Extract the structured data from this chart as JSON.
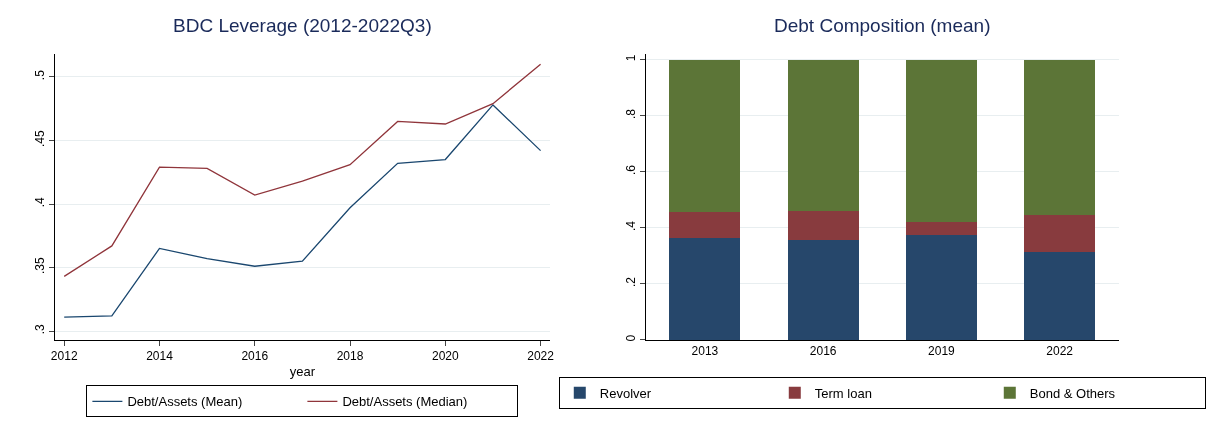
{
  "chart_data": [
    {
      "type": "line",
      "title": "BDC Leverage (2012-2022Q3)",
      "xlabel": "year",
      "x": [
        2012,
        2013,
        2014,
        2015,
        2016,
        2017,
        2018,
        2019,
        2020,
        2021,
        2022
      ],
      "series": [
        {
          "name": "Debt/Assets (Mean)",
          "color": "#1a476f",
          "values": [
            0.311,
            0.312,
            0.365,
            0.357,
            0.351,
            0.355,
            0.397,
            0.432,
            0.435,
            0.478,
            0.442
          ]
        },
        {
          "name": "Debt/Assets (Median)",
          "color": "#90353b",
          "values": [
            0.343,
            0.367,
            0.429,
            0.428,
            0.407,
            0.418,
            0.431,
            0.465,
            0.463,
            0.479,
            0.51
          ]
        }
      ],
      "xlim": [
        2011.8,
        2022.2
      ],
      "xticks": [
        2012,
        2014,
        2016,
        2018,
        2020,
        2022
      ],
      "ylim": [
        0.293,
        0.518
      ],
      "yticks": [
        {
          "value": 0.3,
          "label": ".3"
        },
        {
          "value": 0.35,
          "label": ".35"
        },
        {
          "value": 0.4,
          "label": ".4"
        },
        {
          "value": 0.45,
          "label": ".45"
        },
        {
          "value": 0.5,
          "label": ".5"
        }
      ],
      "grid": "y",
      "legend": "bottom",
      "marker": "none",
      "line_style": "solid"
    },
    {
      "type": "bar",
      "title": "Debt Composition (mean)",
      "stacked": true,
      "categories": [
        "2013",
        "2016",
        "2019",
        "2022"
      ],
      "series": [
        {
          "name": "Revolver",
          "color": "#26476b",
          "values": [
            0.365,
            0.357,
            0.373,
            0.314
          ]
        },
        {
          "name": "Term loan",
          "color": "#883b3e",
          "values": [
            0.091,
            0.104,
            0.049,
            0.131
          ]
        },
        {
          "name": "Bond & Others",
          "color": "#5c7537",
          "values": [
            0.544,
            0.539,
            0.578,
            0.555
          ]
        }
      ],
      "ylim": [
        0,
        1.02
      ],
      "yticks": [
        {
          "value": 0,
          "label": "0"
        },
        {
          "value": 0.2,
          "label": ".2"
        },
        {
          "value": 0.4,
          "label": ".4"
        },
        {
          "value": 0.6,
          "label": ".6"
        },
        {
          "value": 0.8,
          "label": ".8"
        },
        {
          "value": 1,
          "label": "1"
        }
      ],
      "grid": "y",
      "legend": "bottom"
    }
  ]
}
